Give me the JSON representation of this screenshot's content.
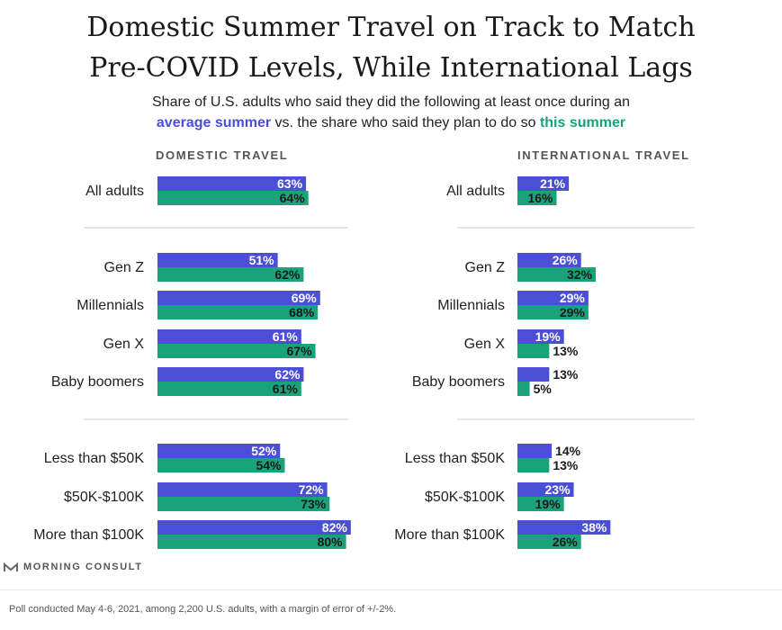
{
  "title_line1": "Domestic Summer Travel on Track to Match",
  "title_line2": "Pre-COVID Levels, While International Lags",
  "subtitle_line1": "Share of U.S. adults who said they did the following at least once during an",
  "subtitle_avg": "average summer",
  "subtitle_mid": " vs. the share who said they plan to do so ",
  "subtitle_this": "this summer",
  "brand": "MORNING CONSULT",
  "footer": "Poll conducted May 4-6, 2021, among 2,200 U.S. adults, with a margin of error of +/-2%.",
  "colors": {
    "average_summer": "#4b4fd6",
    "this_summer": "#1aa37a",
    "divider": "#cccccc"
  },
  "chart_data": [
    {
      "type": "bar",
      "title": "DOMESTIC TRAVEL",
      "categories": [
        "All adults",
        "Gen Z",
        "Millennials",
        "Gen X",
        "Baby boomers",
        "Less than $50K",
        "$50K-$100K",
        "More than $100K"
      ],
      "groups": [
        [
          "All adults"
        ],
        [
          "Gen Z",
          "Millennials",
          "Gen X",
          "Baby boomers"
        ],
        [
          "Less than $50K",
          "$50K-$100K",
          "More than $100K"
        ]
      ],
      "series": [
        {
          "name": "average summer",
          "values": [
            63,
            51,
            69,
            61,
            62,
            52,
            72,
            82
          ]
        },
        {
          "name": "this summer",
          "values": [
            64,
            62,
            68,
            67,
            61,
            54,
            73,
            80
          ]
        }
      ],
      "unit": "%"
    },
    {
      "type": "bar",
      "title": "INTERNATIONAL TRAVEL",
      "categories": [
        "All adults",
        "Gen Z",
        "Millennials",
        "Gen X",
        "Baby boomers",
        "Less than $50K",
        "$50K-$100K",
        "More than $100K"
      ],
      "groups": [
        [
          "All adults"
        ],
        [
          "Gen Z",
          "Millennials",
          "Gen X",
          "Baby boomers"
        ],
        [
          "Less than $50K",
          "$50K-$100K",
          "More than $100K"
        ]
      ],
      "series": [
        {
          "name": "average summer",
          "values": [
            21,
            26,
            29,
            19,
            13,
            14,
            23,
            38
          ]
        },
        {
          "name": "this summer",
          "values": [
            16,
            32,
            29,
            13,
            5,
            13,
            19,
            26
          ]
        }
      ],
      "unit": "%"
    }
  ]
}
